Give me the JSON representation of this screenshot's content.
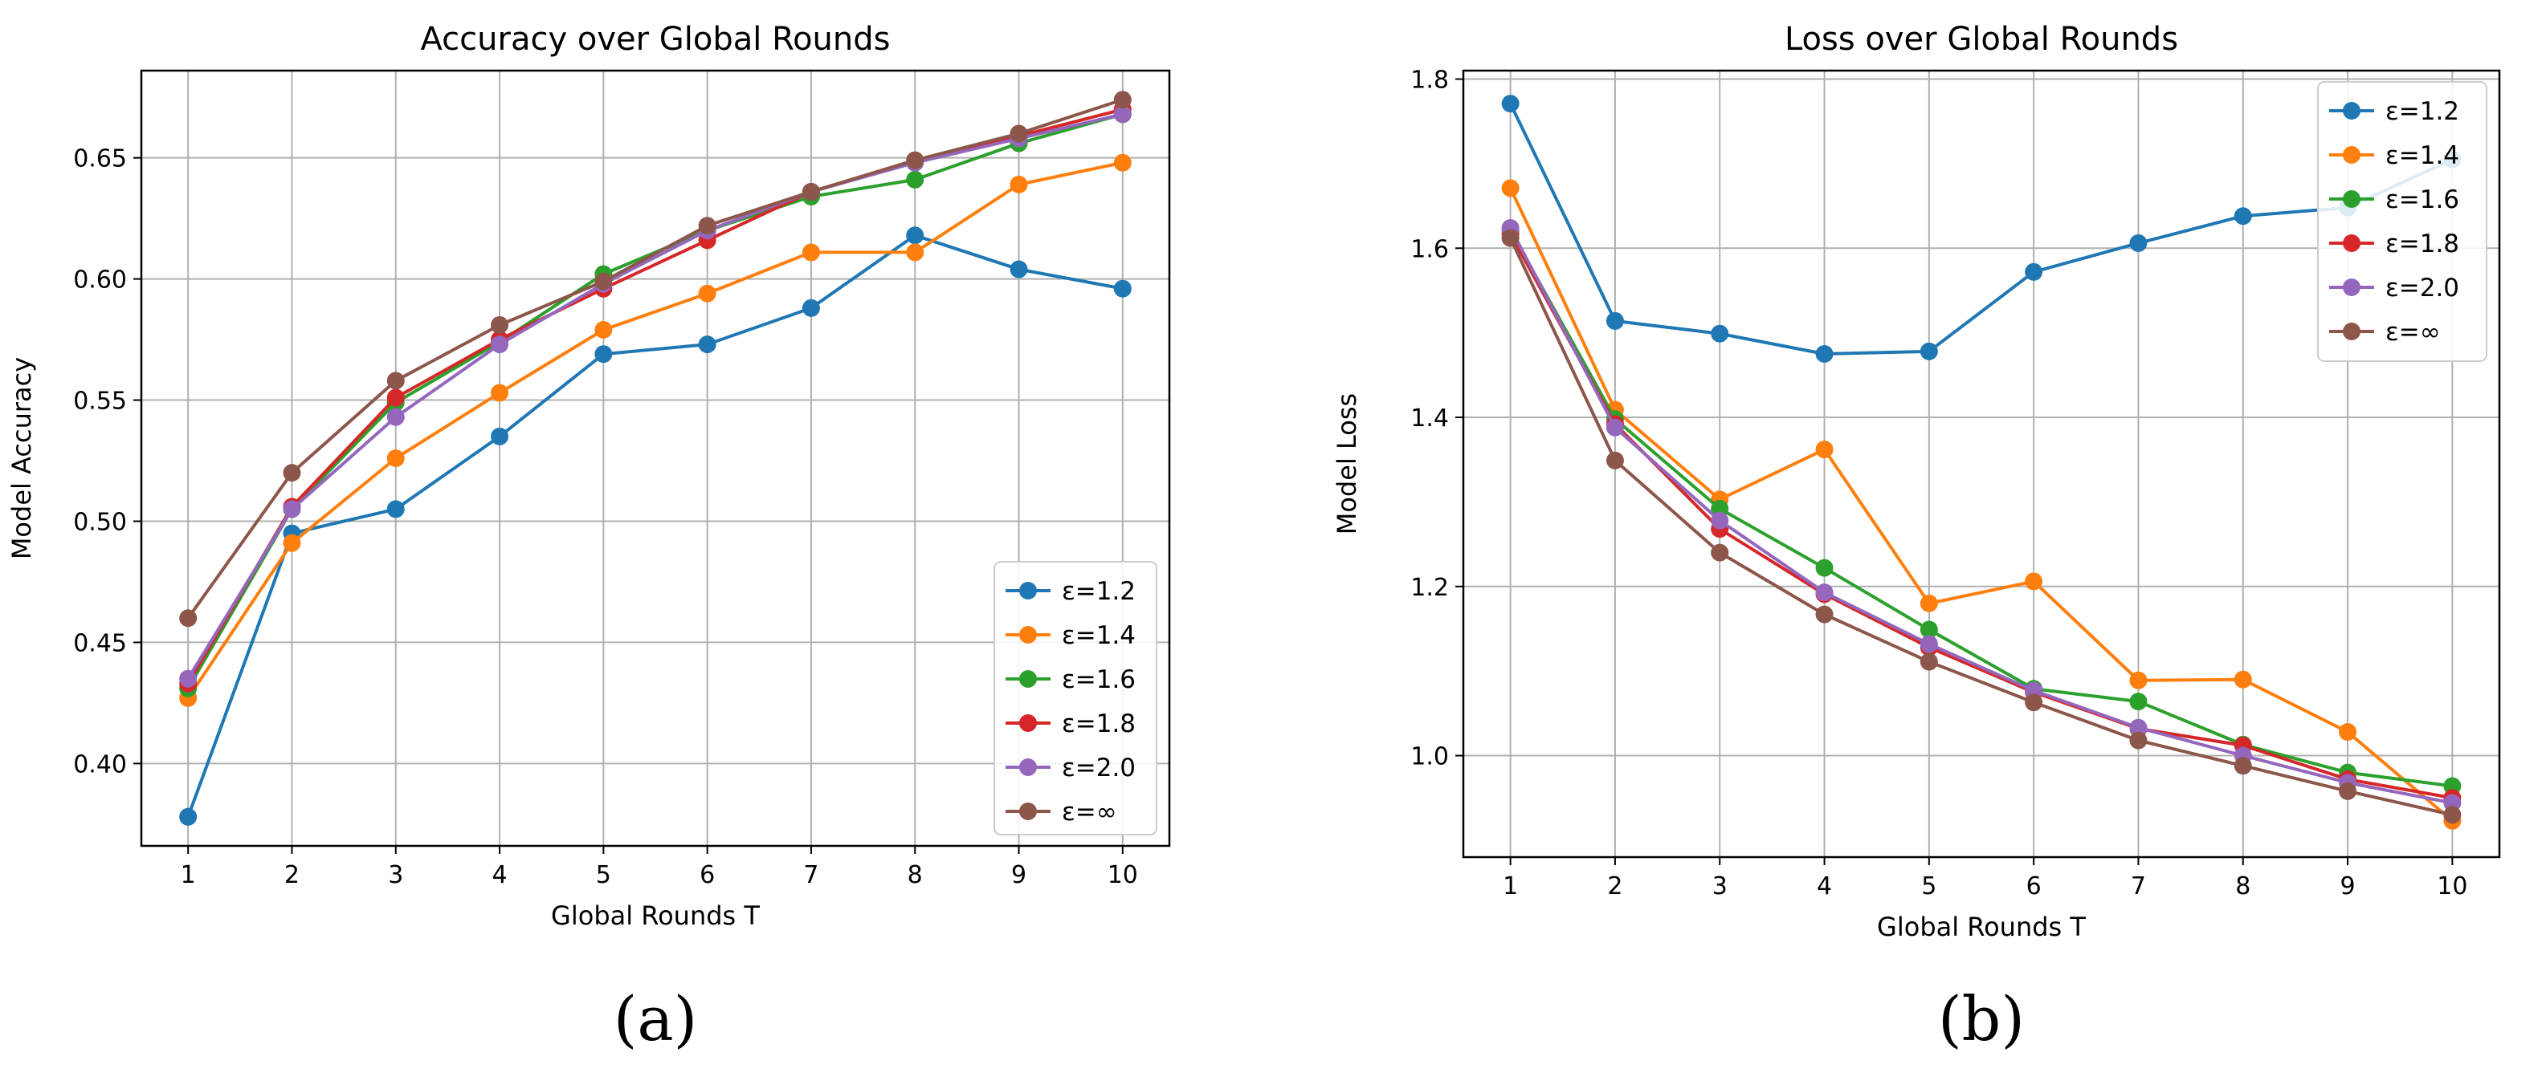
{
  "chart_data": [
    {
      "id": "accuracy",
      "type": "line",
      "title": "Accuracy over Global Rounds",
      "xlabel": "Global Rounds T",
      "ylabel": "Model Accuracy",
      "panel_label": "(a)",
      "x": [
        1,
        2,
        3,
        4,
        5,
        6,
        7,
        8,
        9,
        10
      ],
      "xlim": [
        0.55,
        10.45
      ],
      "ylim": [
        0.366,
        0.686
      ],
      "yticks": [
        0.4,
        0.45,
        0.5,
        0.55,
        0.6,
        0.65
      ],
      "ytick_labels": [
        "0.40",
        "0.45",
        "0.50",
        "0.55",
        "0.60",
        "0.65"
      ],
      "xtick_labels": [
        "1",
        "2",
        "3",
        "4",
        "5",
        "6",
        "7",
        "8",
        "9",
        "10"
      ],
      "grid": true,
      "legend_position": "lower-right",
      "series": [
        {
          "name": "ε=1.2",
          "color": "#1f77b4",
          "values": [
            0.378,
            0.495,
            0.505,
            0.535,
            0.569,
            0.573,
            0.588,
            0.618,
            0.604,
            0.596
          ]
        },
        {
          "name": "ε=1.4",
          "color": "#ff7f0e",
          "values": [
            0.427,
            0.491,
            0.526,
            0.553,
            0.579,
            0.594,
            0.611,
            0.611,
            0.639,
            0.648
          ]
        },
        {
          "name": "ε=1.6",
          "color": "#2ca02c",
          "values": [
            0.431,
            0.505,
            0.549,
            0.574,
            0.602,
            0.62,
            0.634,
            0.641,
            0.656,
            0.668
          ]
        },
        {
          "name": "ε=1.8",
          "color": "#d62728",
          "values": [
            0.433,
            0.506,
            0.551,
            0.575,
            0.596,
            0.616,
            0.636,
            0.649,
            0.659,
            0.67
          ]
        },
        {
          "name": "ε=2.0",
          "color": "#9467bd",
          "values": [
            0.435,
            0.505,
            0.543,
            0.573,
            0.598,
            0.62,
            0.636,
            0.648,
            0.658,
            0.668
          ]
        },
        {
          "name": "ε=∞",
          "color": "#8c564b",
          "values": [
            0.46,
            0.52,
            0.558,
            0.581,
            0.599,
            0.622,
            0.636,
            0.649,
            0.66,
            0.674
          ]
        }
      ]
    },
    {
      "id": "loss",
      "type": "line",
      "title": "Loss over Global Rounds",
      "xlabel": "Global Rounds T",
      "ylabel": "Model Loss",
      "panel_label": "(b)",
      "x": [
        1,
        2,
        3,
        4,
        5,
        6,
        7,
        8,
        9,
        10
      ],
      "xlim": [
        0.55,
        10.45
      ],
      "ylim": [
        0.88,
        1.81
      ],
      "yticks": [
        1.0,
        1.2,
        1.4,
        1.6,
        1.8
      ],
      "ytick_labels": [
        "1.0",
        "1.2",
        "1.4",
        "1.6",
        "1.8"
      ],
      "xtick_labels": [
        "1",
        "2",
        "3",
        "4",
        "5",
        "6",
        "7",
        "8",
        "9",
        "10"
      ],
      "grid": true,
      "legend_position": "upper-right",
      "series": [
        {
          "name": "ε=1.2",
          "color": "#1f77b4",
          "values": [
            1.771,
            1.514,
            1.499,
            1.475,
            1.478,
            1.572,
            1.606,
            1.638,
            1.648,
            1.705
          ]
        },
        {
          "name": "ε=1.4",
          "color": "#ff7f0e",
          "values": [
            1.671,
            1.409,
            1.303,
            1.362,
            1.18,
            1.206,
            1.089,
            1.09,
            1.028,
            0.923
          ]
        },
        {
          "name": "ε=1.6",
          "color": "#2ca02c",
          "values": [
            1.621,
            1.398,
            1.292,
            1.222,
            1.149,
            1.079,
            1.064,
            1.013,
            0.98,
            0.964
          ]
        },
        {
          "name": "ε=1.8",
          "color": "#d62728",
          "values": [
            1.617,
            1.392,
            1.268,
            1.191,
            1.128,
            1.075,
            1.032,
            1.012,
            0.972,
            0.95
          ]
        },
        {
          "name": "ε=2.0",
          "color": "#9467bd",
          "values": [
            1.624,
            1.388,
            1.278,
            1.193,
            1.132,
            1.077,
            1.033,
            1.0,
            0.968,
            0.944
          ]
        },
        {
          "name": "ε=∞",
          "color": "#8c564b",
          "values": [
            1.612,
            1.349,
            1.24,
            1.167,
            1.111,
            1.063,
            1.018,
            0.988,
            0.958,
            0.93
          ]
        }
      ]
    }
  ]
}
